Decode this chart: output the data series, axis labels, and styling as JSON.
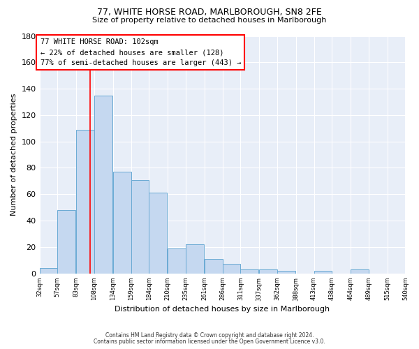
{
  "title1": "77, WHITE HORSE ROAD, MARLBOROUGH, SN8 2FE",
  "title2": "Size of property relative to detached houses in Marlborough",
  "xlabel": "Distribution of detached houses by size in Marlborough",
  "ylabel": "Number of detached properties",
  "bar_values": [
    4,
    48,
    109,
    135,
    77,
    71,
    61,
    19,
    22,
    11,
    7,
    3,
    3,
    2,
    0,
    2,
    0,
    3,
    0,
    0
  ],
  "tick_labels": [
    "32sqm",
    "57sqm",
    "83sqm",
    "108sqm",
    "134sqm",
    "159sqm",
    "184sqm",
    "210sqm",
    "235sqm",
    "261sqm",
    "286sqm",
    "311sqm",
    "337sqm",
    "362sqm",
    "388sqm",
    "413sqm",
    "438sqm",
    "464sqm",
    "489sqm",
    "515sqm",
    "540sqm"
  ],
  "bar_color": "#c5d8f0",
  "bar_edge_color": "#6aaad4",
  "vline_x": 102,
  "vline_color": "red",
  "annotation_line1": "77 WHITE HORSE ROAD: 102sqm",
  "annotation_line2": "← 22% of detached houses are smaller (128)",
  "annotation_line3": "77% of semi-detached houses are larger (443) →",
  "annotation_box_color": "white",
  "annotation_box_edge": "red",
  "ylim_max": 180,
  "yticks": [
    0,
    20,
    40,
    60,
    80,
    100,
    120,
    140,
    160,
    180
  ],
  "footnote1": "Contains HM Land Registry data © Crown copyright and database right 2024.",
  "footnote2": "Contains public sector information licensed under the Open Government Licence v3.0.",
  "bg_color": "#e8eef8",
  "bin_width": 25,
  "bin_starts": [
    32,
    57,
    83,
    108,
    134,
    159,
    184,
    210,
    235,
    261,
    286,
    311,
    337,
    362,
    388,
    413,
    438,
    464,
    489,
    515
  ],
  "title1_fontsize": 9,
  "title2_fontsize": 8,
  "ylabel_fontsize": 8,
  "xlabel_fontsize": 8,
  "ytick_fontsize": 8,
  "xtick_fontsize": 6
}
